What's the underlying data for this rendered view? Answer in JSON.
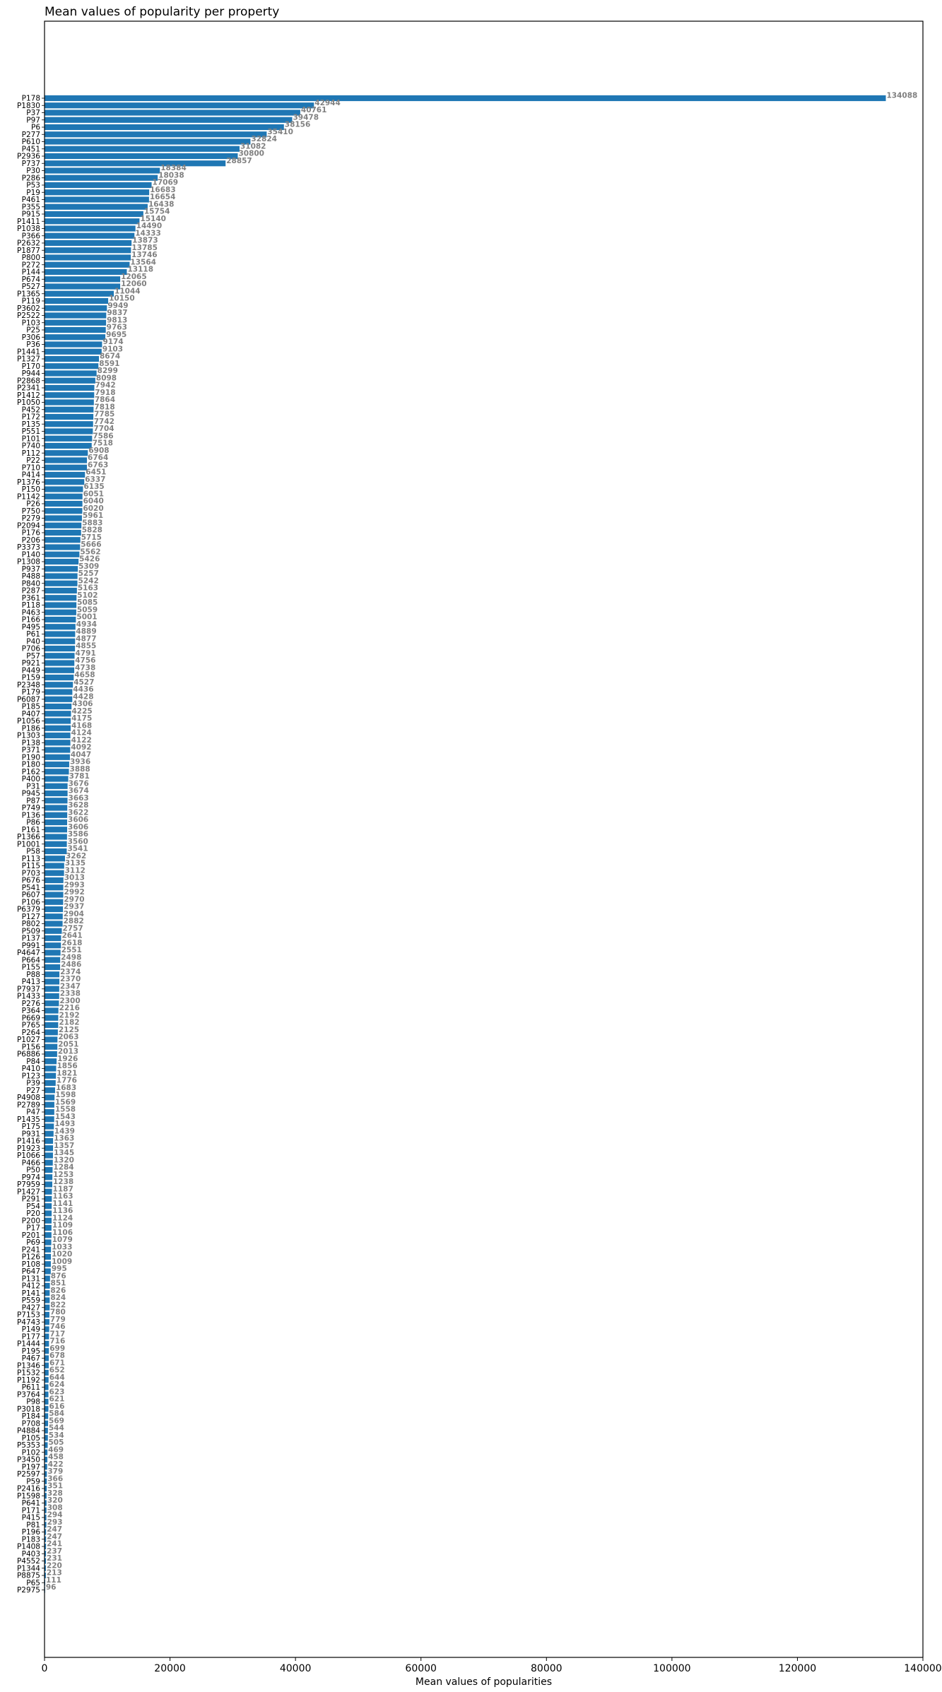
{
  "chart_data": {
    "type": "bar",
    "orientation": "horizontal",
    "title": "Mean values of popularity per property",
    "xlabel": "Mean values of popularities",
    "ylabel": "",
    "xlim": [
      0,
      140000
    ],
    "xticks": [
      0,
      20000,
      40000,
      60000,
      80000,
      100000,
      120000,
      140000
    ],
    "xtick_labels": [
      "0",
      "20000",
      "40000",
      "60000",
      "80000",
      "100000",
      "120000",
      "140000"
    ],
    "grid": false,
    "bar_color": "#1f77b4",
    "value_label_color": "#808080",
    "categories": [
      "P178",
      "P1830",
      "P37",
      "P97",
      "P6",
      "P277",
      "P610",
      "P451",
      "P2936",
      "P737",
      "P30",
      "P286",
      "P53",
      "P19",
      "P461",
      "P355",
      "P915",
      "P1411",
      "P1038",
      "P366",
      "P2632",
      "P1877",
      "P800",
      "P272",
      "P144",
      "P674",
      "P527",
      "P1365",
      "P119",
      "P3602",
      "P2522",
      "P103",
      "P25",
      "P306",
      "P36",
      "P1441",
      "P1327",
      "P170",
      "P944",
      "P2868",
      "P2341",
      "P1412",
      "P1050",
      "P452",
      "P172",
      "P135",
      "P551",
      "P101",
      "P740",
      "P112",
      "P22",
      "P710",
      "P414",
      "P1376",
      "P150",
      "P1142",
      "P26",
      "P750",
      "P279",
      "P2094",
      "P176",
      "P206",
      "P3373",
      "P140",
      "P1308",
      "P937",
      "P488",
      "P840",
      "P287",
      "P361",
      "P118",
      "P463",
      "P166",
      "P495",
      "P61",
      "P40",
      "P706",
      "P57",
      "P921",
      "P449",
      "P159",
      "P2348",
      "P179",
      "P6087",
      "P185",
      "P407",
      "P1056",
      "P186",
      "P1303",
      "P138",
      "P371",
      "P190",
      "P180",
      "P162",
      "P400",
      "P31",
      "P945",
      "P87",
      "P749",
      "P136",
      "P86",
      "P161",
      "P1366",
      "P1001",
      "P58",
      "P113",
      "P115",
      "P703",
      "P676",
      "P541",
      "P607",
      "P106",
      "P6379",
      "P127",
      "P802",
      "P509",
      "P137",
      "P991",
      "P4647",
      "P664",
      "P155",
      "P88",
      "P413",
      "P7937",
      "P1433",
      "P276",
      "P364",
      "P669",
      "P765",
      "P264",
      "P1027",
      "P156",
      "P6886",
      "P84",
      "P410",
      "P123",
      "P39",
      "P27",
      "P4908",
      "P2789",
      "P47",
      "P1435",
      "P175",
      "P931",
      "P1416",
      "P1923",
      "P1066",
      "P466",
      "P50",
      "P974",
      "P7959",
      "P1427",
      "P291",
      "P54",
      "P20",
      "P200",
      "P17",
      "P201",
      "P69",
      "P241",
      "P126",
      "P108",
      "P647",
      "P131",
      "P412",
      "P141",
      "P559",
      "P427",
      "P7153",
      "P4743",
      "P149",
      "P177",
      "P1444",
      "P195",
      "P467",
      "P1346",
      "P1532",
      "P1192",
      "P611",
      "P3764",
      "P98",
      "P3018",
      "P184",
      "P708",
      "P4884",
      "P105",
      "P5353",
      "P102",
      "P3450",
      "P197",
      "P2597",
      "P59",
      "P2416",
      "P1598",
      "P641",
      "P171",
      "P415",
      "P81",
      "P196",
      "P183",
      "P1408",
      "P403",
      "P4552",
      "P1344",
      "P8875",
      "P65",
      "P2975"
    ],
    "values": [
      134088,
      42944,
      40761,
      39478,
      38156,
      35410,
      32824,
      31082,
      30800,
      28857,
      18384,
      18038,
      17069,
      16683,
      16654,
      16438,
      15754,
      15140,
      14490,
      14333,
      13873,
      13785,
      13746,
      13564,
      13118,
      12065,
      12060,
      11044,
      10150,
      9949,
      9837,
      9813,
      9763,
      9695,
      9174,
      9103,
      8674,
      8591,
      8299,
      8098,
      7942,
      7918,
      7864,
      7818,
      7785,
      7742,
      7704,
      7586,
      7518,
      6908,
      6764,
      6763,
      6451,
      6337,
      6135,
      6051,
      6040,
      6020,
      5961,
      5883,
      5828,
      5715,
      5666,
      5562,
      5426,
      5309,
      5257,
      5242,
      5163,
      5102,
      5085,
      5059,
      5001,
      4934,
      4889,
      4877,
      4855,
      4791,
      4756,
      4738,
      4658,
      4527,
      4436,
      4428,
      4306,
      4225,
      4175,
      4168,
      4124,
      4122,
      4092,
      4047,
      3936,
      3888,
      3781,
      3676,
      3674,
      3663,
      3628,
      3622,
      3606,
      3606,
      3586,
      3560,
      3541,
      3262,
      3135,
      3112,
      3013,
      2993,
      2992,
      2970,
      2937,
      2904,
      2882,
      2757,
      2641,
      2618,
      2551,
      2498,
      2486,
      2374,
      2370,
      2347,
      2338,
      2300,
      2216,
      2192,
      2182,
      2125,
      2063,
      2051,
      2013,
      1926,
      1856,
      1821,
      1776,
      1683,
      1598,
      1569,
      1558,
      1543,
      1493,
      1439,
      1363,
      1357,
      1345,
      1320,
      1284,
      1253,
      1238,
      1187,
      1163,
      1141,
      1136,
      1124,
      1109,
      1106,
      1079,
      1033,
      1020,
      1009,
      995,
      876,
      851,
      826,
      824,
      822,
      780,
      779,
      746,
      717,
      716,
      699,
      678,
      671,
      652,
      644,
      624,
      623,
      621,
      616,
      584,
      569,
      544,
      534,
      505,
      469,
      458,
      422,
      379,
      366,
      351,
      328,
      320,
      308,
      294,
      293,
      247,
      247,
      241,
      237,
      231,
      220,
      213,
      111,
      96
    ]
  }
}
